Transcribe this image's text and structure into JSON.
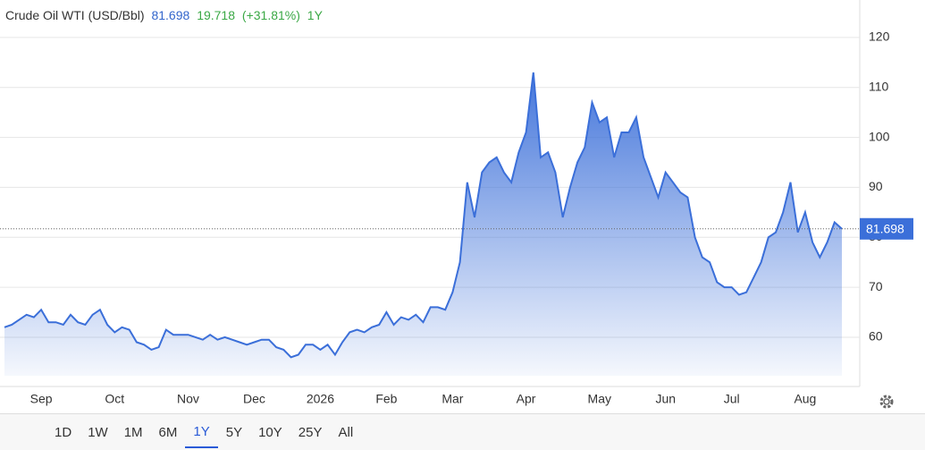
{
  "chart_data": {
    "type": "area",
    "title": "Crude Oil WTI (USD/Bbl)",
    "price": 81.698,
    "change": 19.718,
    "change_pct": "(+31.81%)",
    "period": "1Y",
    "color": "#3b6fd9",
    "categories": [
      null,
      null,
      null,
      null,
      null,
      "Sep",
      null,
      null,
      null,
      null,
      null,
      null,
      null,
      null,
      null,
      "Oct",
      null,
      null,
      null,
      null,
      null,
      null,
      null,
      null,
      null,
      "Nov",
      null,
      null,
      null,
      null,
      null,
      null,
      null,
      null,
      "Dec",
      null,
      null,
      null,
      null,
      null,
      null,
      null,
      null,
      "2026",
      null,
      null,
      null,
      null,
      null,
      null,
      null,
      null,
      "Feb",
      null,
      null,
      null,
      null,
      null,
      null,
      null,
      null,
      "Mar",
      null,
      null,
      null,
      null,
      null,
      null,
      null,
      null,
      null,
      "Apr",
      null,
      null,
      null,
      null,
      null,
      null,
      null,
      null,
      null,
      "May",
      null,
      null,
      null,
      null,
      null,
      null,
      null,
      null,
      "Jun",
      null,
      null,
      null,
      null,
      null,
      null,
      null,
      null,
      "Jul",
      null,
      null,
      null,
      null,
      null,
      null,
      null,
      null,
      null,
      "Aug",
      null,
      null,
      null,
      null,
      null
    ],
    "values": [
      62,
      62.5,
      63.5,
      64.5,
      64,
      65.5,
      63,
      63,
      62.5,
      64.5,
      63,
      62.5,
      64.5,
      65.5,
      62.5,
      61,
      62,
      61.5,
      59,
      58.5,
      57.5,
      58,
      61.5,
      60.5,
      60.5,
      60.5,
      60,
      59.5,
      60.5,
      59.5,
      60,
      59.5,
      59,
      58.5,
      59,
      59.5,
      59.5,
      58,
      57.5,
      56,
      56.5,
      58.5,
      58.5,
      57.5,
      58.5,
      56.5,
      59,
      61,
      61.5,
      61,
      62,
      62.5,
      65,
      62.5,
      64,
      63.5,
      64.5,
      63,
      66,
      66,
      65.5,
      69,
      75,
      91,
      84,
      93,
      95,
      96,
      93,
      91,
      97,
      101,
      113,
      96,
      97,
      93,
      84,
      90,
      95,
      98,
      107,
      103,
      104,
      96,
      101,
      101,
      104,
      96,
      92,
      88,
      93,
      91,
      89,
      88,
      80,
      76,
      75,
      71,
      70,
      70,
      68.5,
      69,
      72,
      75,
      80,
      81,
      85,
      91,
      81,
      85,
      79,
      76,
      79,
      83,
      81.698
    ],
    "ylim": [
      50.5,
      127.5
    ],
    "yticks": [
      60,
      70,
      80,
      90,
      100,
      110,
      120
    ],
    "grid": true,
    "ranges": [
      "1D",
      "1W",
      "1M",
      "6M",
      "1Y",
      "5Y",
      "10Y",
      "25Y",
      "All"
    ]
  }
}
